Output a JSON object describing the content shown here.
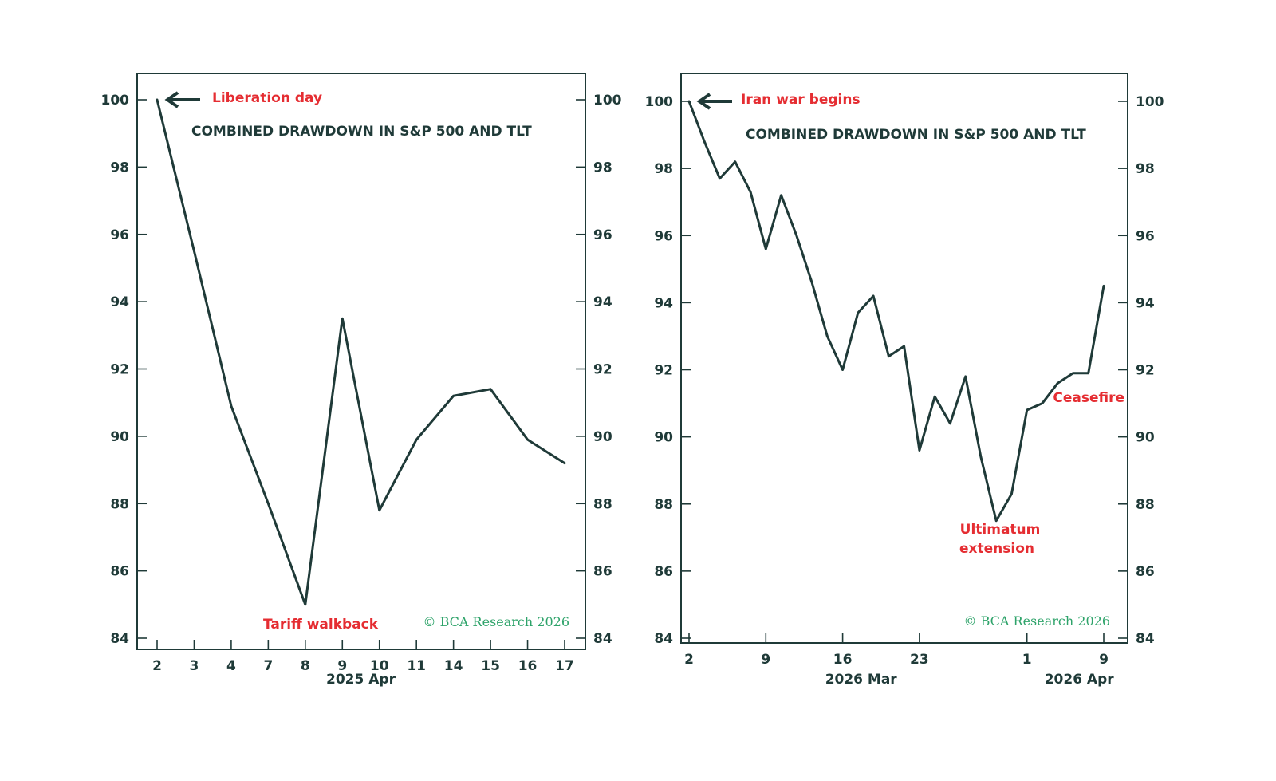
{
  "colors": {
    "line": "#1f3a38",
    "annotation": "#e52d32",
    "copyright": "#2ea36a"
  },
  "chart_data": [
    {
      "type": "line",
      "title": "COMBINED DRAWDOWN IN S&P 500 AND TLT",
      "ylim": [
        84,
        100
      ],
      "yticks": [
        "84",
        "86",
        "88",
        "90",
        "92",
        "94",
        "96",
        "98",
        "100"
      ],
      "categories": [
        "2",
        "3",
        "4",
        "7",
        "8",
        "9",
        "10",
        "11",
        "14",
        "15",
        "16",
        "17"
      ],
      "x_sublabels": [
        {
          "text": "2025 Apr",
          "under_index": 5.5
        }
      ],
      "series": [
        {
          "name": "Combined drawdown",
          "x": [
            0,
            1,
            2,
            3,
            4,
            5,
            6,
            7,
            8,
            9,
            10,
            11
          ],
          "values": [
            100,
            95.5,
            90.9,
            88.0,
            85.0,
            93.5,
            87.8,
            89.9,
            91.2,
            91.4,
            89.9,
            89.2
          ]
        }
      ],
      "annotations": [
        {
          "text": "Liberation day",
          "x": 0,
          "y": 100,
          "arrow": true
        },
        {
          "text": "Tariff walkback",
          "x": 4,
          "y": 84.4,
          "arrow": false
        }
      ],
      "copyright": "© BCA Research 2026"
    },
    {
      "type": "line",
      "title": "COMBINED DRAWDOWN IN S&P 500 AND TLT",
      "ylim": [
        84,
        100
      ],
      "yticks": [
        "84",
        "86",
        "88",
        "90",
        "92",
        "94",
        "96",
        "98",
        "100"
      ],
      "categories": [
        "2",
        "9",
        "16",
        "23",
        "1",
        "9"
      ],
      "category_positions": [
        0,
        5,
        10,
        15,
        22,
        27
      ],
      "x_sublabels": [
        {
          "text": "2026 Mar",
          "under_index": 11.2
        },
        {
          "text": "2026 Apr",
          "under_index": 25.4
        }
      ],
      "series": [
        {
          "name": "Combined drawdown",
          "x": [
            0,
            1,
            2,
            3,
            4,
            5,
            6,
            7,
            8,
            9,
            10,
            11,
            12,
            13,
            14,
            15,
            16,
            17,
            18,
            19,
            20,
            21,
            22,
            23,
            24,
            25,
            26,
            27
          ],
          "values": [
            100,
            98.8,
            97.7,
            98.2,
            97.3,
            95.6,
            97.2,
            96.0,
            94.6,
            93.0,
            92.0,
            93.7,
            94.2,
            92.4,
            92.7,
            89.6,
            91.2,
            90.4,
            91.8,
            89.4,
            87.5,
            88.3,
            90.8,
            91.0,
            91.6,
            91.9,
            91.9,
            94.5
          ]
        }
      ],
      "annotations": [
        {
          "text": "Iran war begins",
          "x": 0,
          "y": 100,
          "arrow": true
        },
        {
          "text": "Ultimatum",
          "x": 20,
          "y": 86.8,
          "arrow": false
        },
        {
          "text": "extension",
          "x": 20,
          "y": 86.2,
          "arrow": false
        },
        {
          "text": "Ceasefire",
          "x": 25.5,
          "y": 91.0,
          "arrow": false
        }
      ],
      "copyright": "© BCA Research 2026"
    }
  ]
}
